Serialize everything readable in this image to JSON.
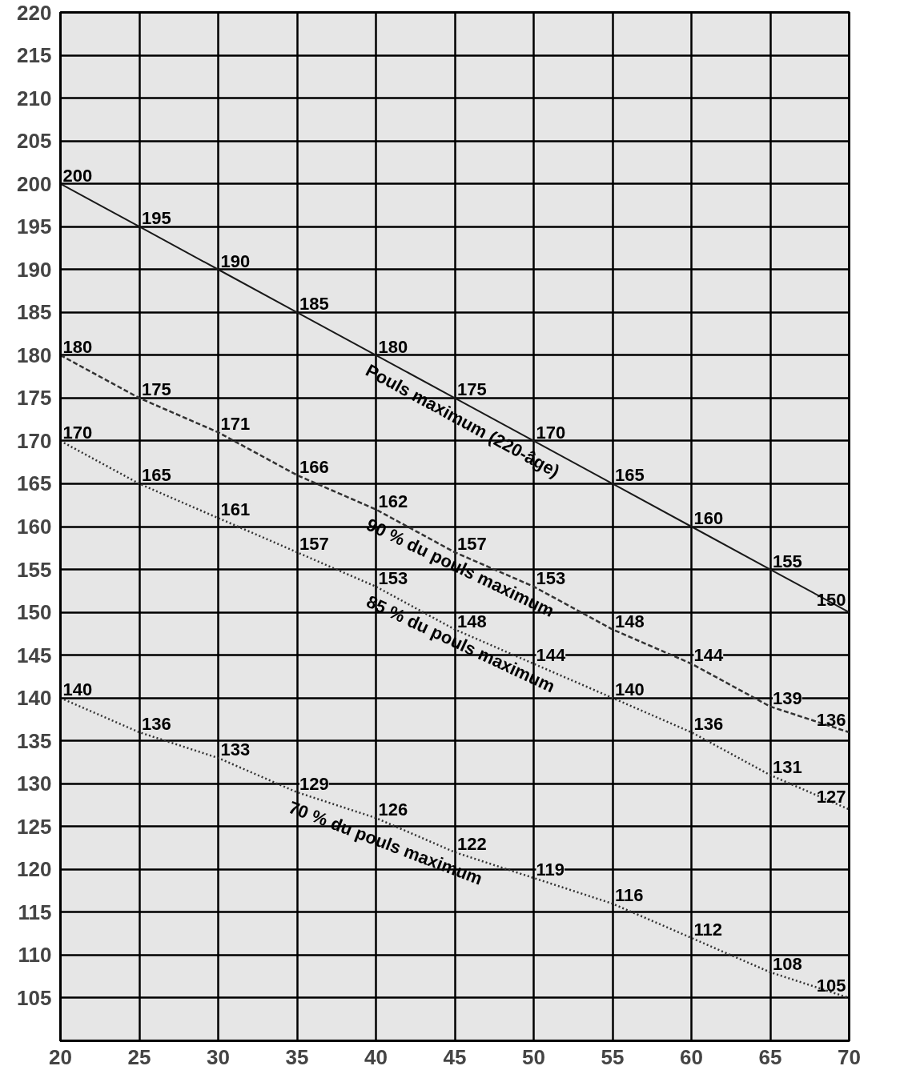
{
  "chart_data": {
    "type": "line",
    "x": [
      20,
      25,
      30,
      35,
      40,
      45,
      50,
      55,
      60,
      65,
      70
    ],
    "series": [
      {
        "name": "Pouls maximum (220-âge)",
        "color": "#1a1a1a",
        "line_style": "solid",
        "values": [
          200,
          195,
          190,
          185,
          180,
          175,
          170,
          165,
          160,
          155,
          150
        ]
      },
      {
        "name": "90 % du pouls maximum",
        "color": "#333333",
        "line_style": "dashed",
        "values": [
          180,
          175,
          171,
          166,
          162,
          157,
          153,
          148,
          144,
          139,
          136
        ]
      },
      {
        "name": "85 % du pouls maximum",
        "color": "#333333",
        "line_style": "dotted",
        "values": [
          170,
          165,
          161,
          157,
          153,
          148,
          144,
          140,
          136,
          131,
          127
        ]
      },
      {
        "name": "70 % du pouls maximum",
        "color": "#333333",
        "line_style": "dotted",
        "values": [
          140,
          136,
          133,
          129,
          126,
          122,
          119,
          116,
          112,
          108,
          105
        ]
      }
    ],
    "xlim": [
      20,
      70
    ],
    "ylim": [
      100,
      220
    ],
    "xticks": [
      20,
      25,
      30,
      35,
      40,
      45,
      50,
      55,
      60,
      65,
      70
    ],
    "yticks": [
      105,
      110,
      115,
      120,
      125,
      130,
      135,
      140,
      145,
      150,
      155,
      160,
      165,
      170,
      175,
      180,
      185,
      190,
      195,
      200,
      205,
      210,
      215,
      220
    ],
    "grid": true,
    "marker": "none",
    "data_labels": true
  }
}
